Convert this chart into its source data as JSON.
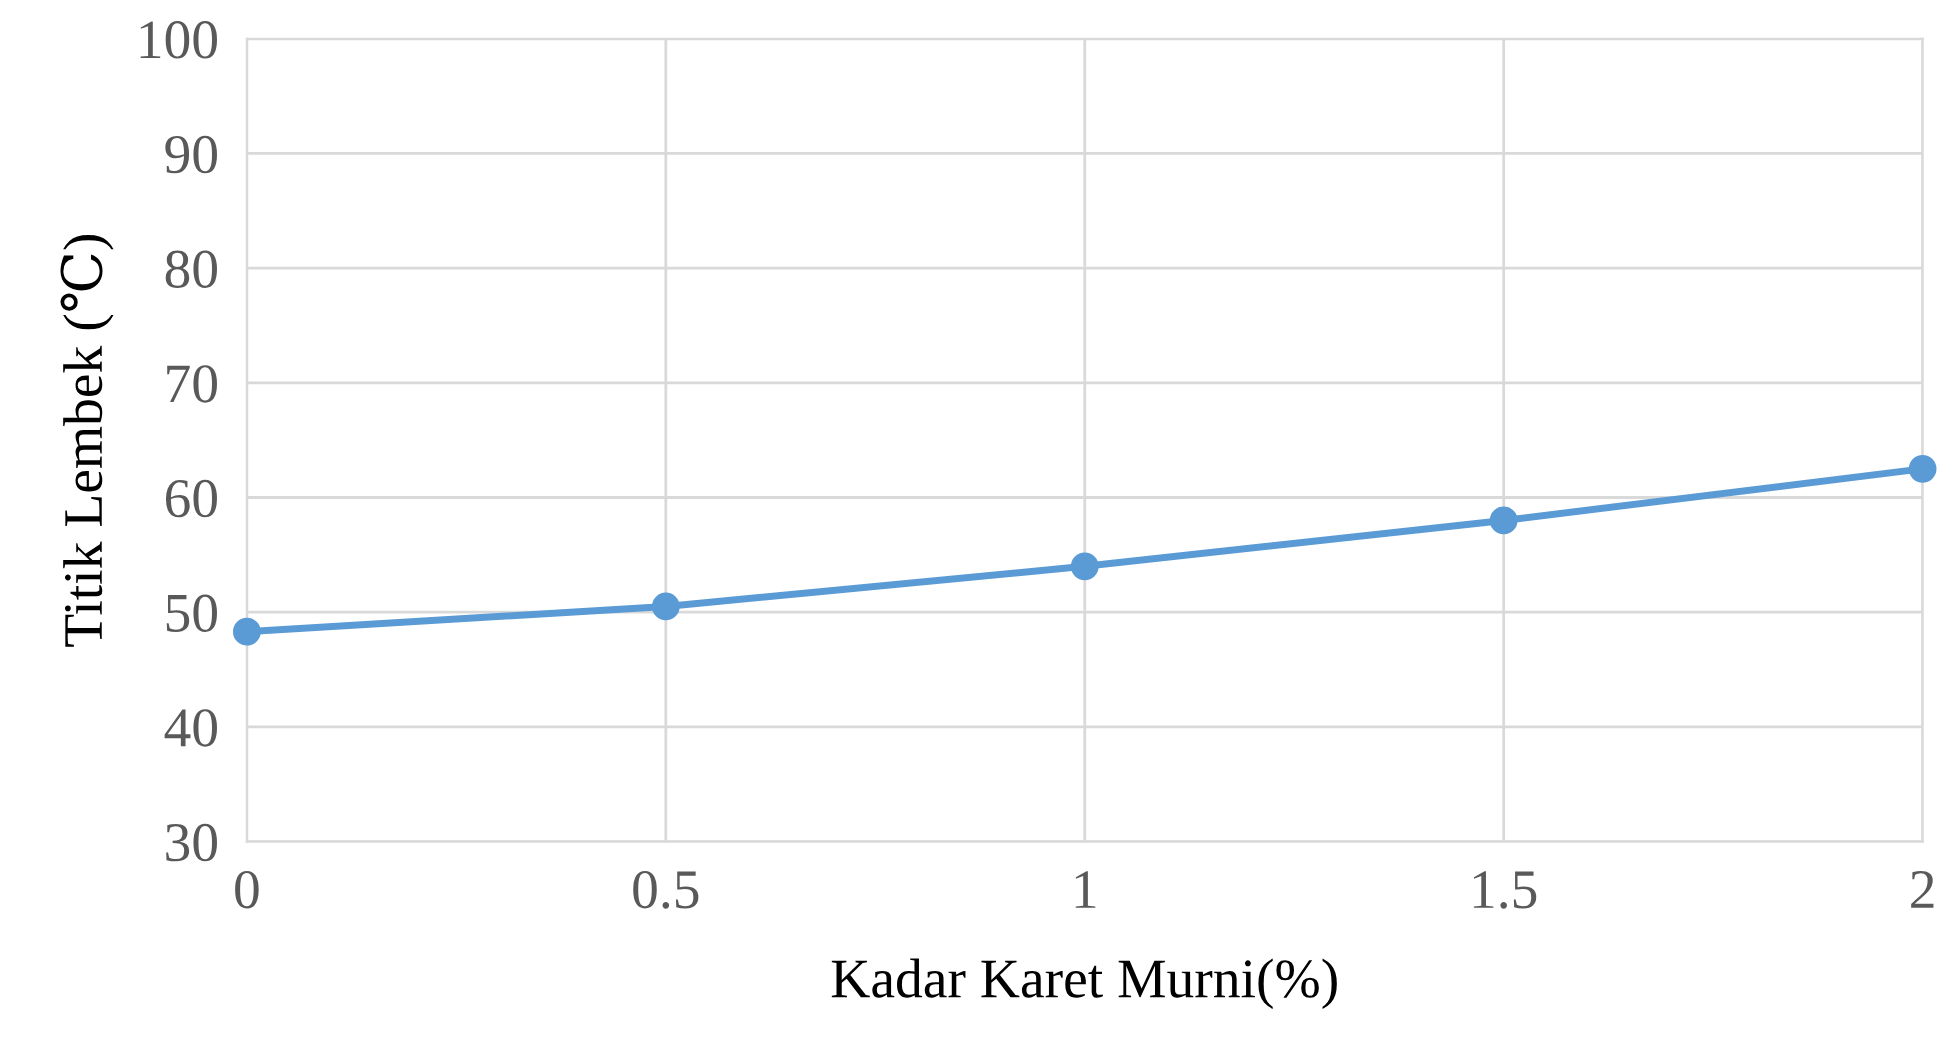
{
  "chart_data": {
    "type": "line",
    "xlabel": "Kadar Karet Murni(%)",
    "ylabel": "Titik Lembek (℃)",
    "x": [
      0,
      0.5,
      1,
      1.5,
      2
    ],
    "series": [
      {
        "color": "#5b9bd5",
        "values": [
          48.3,
          50.5,
          54,
          58,
          62.5
        ]
      }
    ],
    "xlim": [
      0,
      2
    ],
    "xticks": [
      0,
      0.5,
      1,
      1.5,
      2
    ],
    "ylim": [
      30,
      100
    ],
    "yticks": [
      30,
      40,
      50,
      60,
      70,
      80,
      90,
      100
    ],
    "grid": true,
    "marker": "circle",
    "line_style": "solid"
  }
}
